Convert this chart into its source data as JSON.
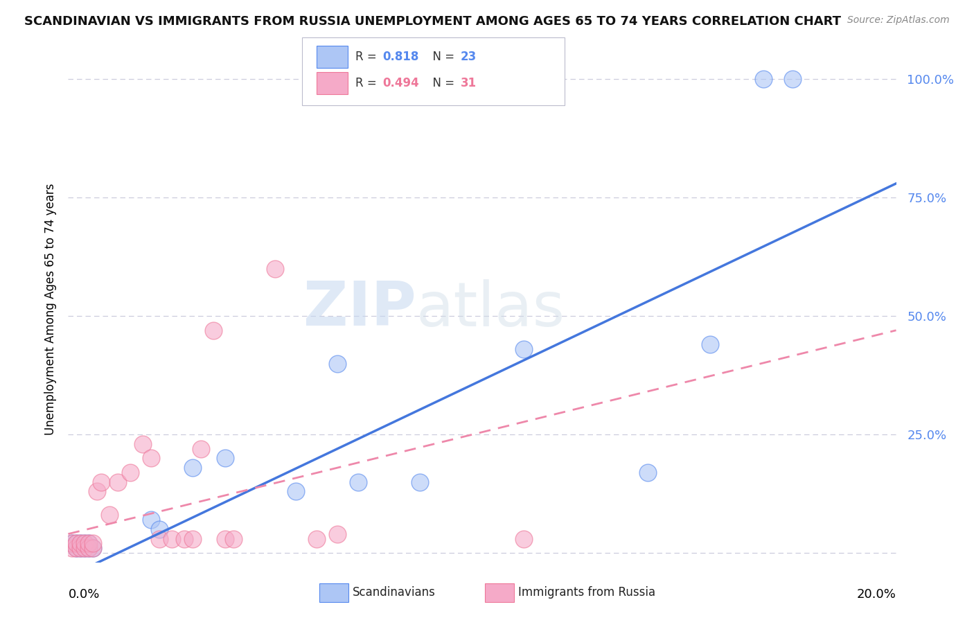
{
  "title": "SCANDINAVIAN VS IMMIGRANTS FROM RUSSIA UNEMPLOYMENT AMONG AGES 65 TO 74 YEARS CORRELATION CHART",
  "source": "Source: ZipAtlas.com",
  "ylabel": "Unemployment Among Ages 65 to 74 years",
  "background_color": "#ffffff",
  "grid_color": "#ccccdd",
  "watermark_zip": "ZIP",
  "watermark_atlas": "atlas",
  "legend_R_blue": "0.818",
  "legend_N_blue": "23",
  "legend_R_pink": "0.494",
  "legend_N_pink": "31",
  "blue_fill": "#adc6f5",
  "blue_edge": "#5588ee",
  "pink_fill": "#f5aac8",
  "pink_edge": "#ee7799",
  "blue_line_color": "#4477dd",
  "pink_line_color": "#ee88aa",
  "ytick_color": "#5588ee",
  "scandinavians_x": [
    0.001,
    0.002,
    0.002,
    0.003,
    0.003,
    0.004,
    0.004,
    0.005,
    0.005,
    0.006,
    0.02,
    0.022,
    0.03,
    0.038,
    0.055,
    0.065,
    0.07,
    0.085,
    0.11,
    0.14,
    0.155,
    0.168,
    0.175
  ],
  "scandinavians_y": [
    0.02,
    0.01,
    0.02,
    0.01,
    0.02,
    0.01,
    0.02,
    0.01,
    0.02,
    0.01,
    0.07,
    0.05,
    0.18,
    0.2,
    0.13,
    0.4,
    0.15,
    0.15,
    0.43,
    0.17,
    0.44,
    1.0,
    1.0
  ],
  "russia_x": [
    0.001,
    0.001,
    0.002,
    0.002,
    0.003,
    0.003,
    0.004,
    0.004,
    0.005,
    0.005,
    0.006,
    0.006,
    0.007,
    0.008,
    0.01,
    0.012,
    0.015,
    0.018,
    0.02,
    0.022,
    0.025,
    0.028,
    0.03,
    0.032,
    0.035,
    0.038,
    0.04,
    0.05,
    0.06,
    0.065,
    0.11
  ],
  "russia_y": [
    0.01,
    0.02,
    0.01,
    0.02,
    0.01,
    0.02,
    0.01,
    0.02,
    0.01,
    0.02,
    0.01,
    0.02,
    0.13,
    0.15,
    0.08,
    0.15,
    0.17,
    0.23,
    0.2,
    0.03,
    0.03,
    0.03,
    0.03,
    0.22,
    0.47,
    0.03,
    0.03,
    0.6,
    0.03,
    0.04,
    0.03
  ],
  "blue_line_x": [
    0.0,
    0.2
  ],
  "blue_line_y": [
    -0.05,
    0.78
  ],
  "pink_line_x": [
    0.0,
    0.2
  ],
  "pink_line_y": [
    0.04,
    0.47
  ],
  "xlim": [
    0.0,
    0.2
  ],
  "ylim": [
    -0.02,
    1.05
  ],
  "yticks": [
    0.0,
    0.25,
    0.5,
    0.75,
    1.0
  ],
  "ytick_labels": [
    "",
    "25.0%",
    "50.0%",
    "75.0%",
    "100.0%"
  ]
}
